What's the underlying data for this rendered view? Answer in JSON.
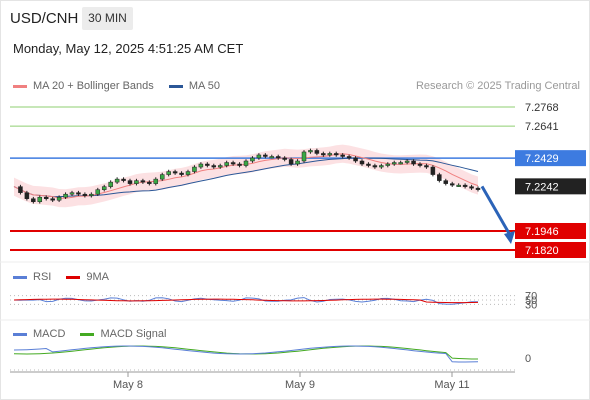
{
  "header": {
    "symbol": "USD/CNH",
    "interval": "30 MIN"
  },
  "datetime": "Monday, May 12, 2025 4:51:25 AM CET",
  "credit": "Research © 2025 Trading Central",
  "legend_main": [
    {
      "label": "MA 20 + Bollinger Bands",
      "color": "#f08080"
    },
    {
      "label": "MA 50",
      "color": "#2b5797"
    }
  ],
  "legend_rsi": [
    {
      "label": "RSI",
      "color": "#5a7fd6"
    },
    {
      "label": "9MA",
      "color": "#dd0000"
    }
  ],
  "legend_macd": [
    {
      "label": "MACD",
      "color": "#5a7fd6"
    },
    {
      "label": "MACD Signal",
      "color": "#44aa22"
    }
  ],
  "chart_data": {
    "type": "candlestick",
    "symbol": "USD/CNH",
    "interval": "30 MIN",
    "price_range": [
      7.175,
      7.285
    ],
    "x_ticks": [
      "May 8",
      "May 9",
      "May 11"
    ],
    "levels": [
      {
        "value": 7.2768,
        "label": "7.2768",
        "kind": "resistance",
        "color": "#8fcf70"
      },
      {
        "value": 7.2641,
        "label": "7.2641",
        "kind": "resistance",
        "color": "#8fcf70"
      },
      {
        "value": 7.2429,
        "label": "7.2429",
        "kind": "pivot",
        "color": "#3d7be0"
      },
      {
        "value": 7.2242,
        "label": "7.2242",
        "kind": "last-price",
        "color": "#222222"
      },
      {
        "value": 7.1946,
        "label": "7.1946",
        "kind": "support",
        "color": "#e00000"
      },
      {
        "value": 7.182,
        "label": "7.1820",
        "kind": "support",
        "color": "#e00000"
      }
    ],
    "price_series": [
      7.224,
      7.22,
      7.216,
      7.214,
      7.217,
      7.216,
      7.215,
      7.217,
      7.219,
      7.22,
      7.219,
      7.218,
      7.219,
      7.222,
      7.224,
      7.227,
      7.229,
      7.228,
      7.226,
      7.228,
      7.227,
      7.226,
      7.229,
      7.232,
      7.234,
      7.233,
      7.232,
      7.234,
      7.237,
      7.239,
      7.238,
      7.237,
      7.238,
      7.24,
      7.239,
      7.238,
      7.241,
      7.243,
      7.245,
      7.244,
      7.244,
      7.243,
      7.242,
      7.239,
      7.241,
      7.247,
      7.248,
      7.246,
      7.245,
      7.246,
      7.245,
      7.244,
      7.243,
      7.241,
      7.239,
      7.238,
      7.237,
      7.238,
      7.239,
      7.24,
      7.24,
      7.241,
      7.239,
      7.238,
      7.237,
      7.232,
      7.228,
      7.226,
      7.225,
      7.225,
      7.224,
      7.223,
      7.222
    ],
    "rsi": {
      "levels": [
        70,
        50,
        30
      ]
    },
    "macd": {
      "levels": [
        0
      ]
    },
    "forecast": {
      "from": 7.2242,
      "to": 7.1946,
      "direction": "down"
    }
  }
}
